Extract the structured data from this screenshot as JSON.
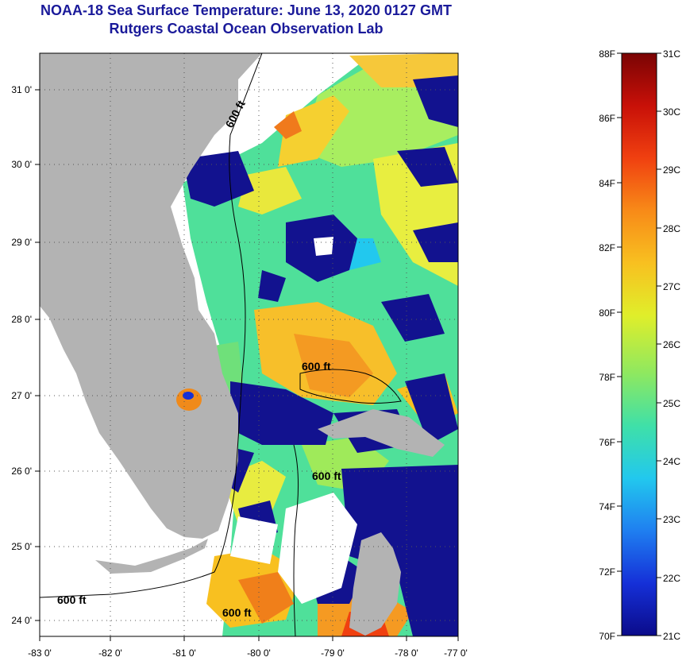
{
  "title": "NOAA-18 Sea Surface Temperature:  June 13, 2020 0127 GMT",
  "subtitle": "Rutgers Coastal Ocean Observation Lab",
  "map": {
    "lon_ticks": [
      "-83 0'",
      "-82 0'",
      "-81 0'",
      "-80 0'",
      "-79 0'",
      "-78 0'",
      "-77 0'"
    ],
    "lat_ticks": [
      "31 0'",
      "30 0'",
      "29 0'",
      "28 0'",
      "27 0'",
      "26 0'",
      "25 0'",
      "24 0'"
    ],
    "contour_labels": [
      "600 ft",
      "600 ft",
      "600 ft",
      "600 ft",
      "600 ft"
    ],
    "land_color": "#b3b3b3",
    "cloud_color": "#ffffff"
  },
  "colorbar": {
    "f_labels": [
      "88F",
      "86F",
      "84F",
      "82F",
      "80F",
      "78F",
      "76F",
      "74F",
      "72F",
      "70F"
    ],
    "c_labels": [
      "31C",
      "30C",
      "29C",
      "28C",
      "27C",
      "26C",
      "25C",
      "24C",
      "23C",
      "22C",
      "21C"
    ],
    "colors": [
      "#0b0b8a",
      "#1530d8",
      "#1f7ff0",
      "#22c8ee",
      "#3fe0a8",
      "#8ee860",
      "#e0ee2a",
      "#f8c020",
      "#f88a18",
      "#f04010",
      "#c81008",
      "#7a0404"
    ]
  }
}
